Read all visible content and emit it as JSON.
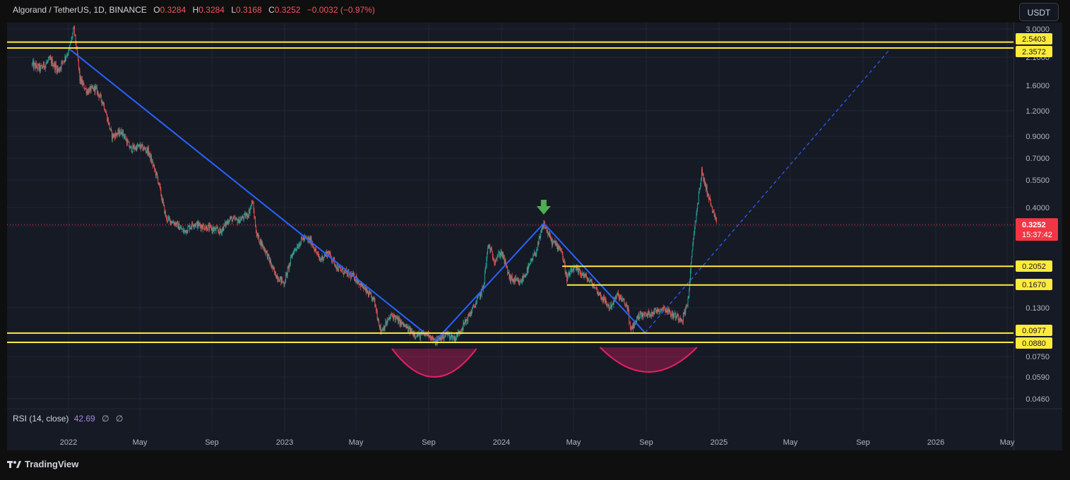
{
  "header": {
    "symbol": "Algorand / TetherUS, 1D, BINANCE",
    "open_label": "O",
    "open": "0.3284",
    "high_label": "H",
    "high": "0.3284",
    "low_label": "L",
    "low": "0.3168",
    "close_label": "C",
    "close": "0.3252",
    "change": "−0.0032 (−0.97%)",
    "currency": "USDT"
  },
  "price_tag": {
    "value": "0.3252",
    "countdown": "15:37:42"
  },
  "rsi": {
    "name": "RSI (14, close)",
    "value": "42.69",
    "placeholder1": "∅",
    "placeholder2": "∅"
  },
  "brand": "TradingView",
  "colors": {
    "background": "#161a25",
    "up": "#26a69a",
    "down": "#ef5350",
    "trendline": "#2962ff",
    "level": "#ffeb3b",
    "arrow": "#4caf50",
    "arc": "#e91e63",
    "price_tag": "#f23645"
  },
  "icons": {
    "arrow": "arrow-down-icon",
    "brand": "tradingview-logo-icon"
  },
  "chart_data": {
    "type": "candlestick",
    "y_scale": "log",
    "ylim": [
      0.04,
      3.0
    ],
    "y_ticks": [
      "3.0000",
      "2.1000",
      "1.6000",
      "1.2000",
      "0.9000",
      "0.7000",
      "0.5500",
      "0.4000",
      "0.3200",
      "0.1300",
      "0.0750",
      "0.0590",
      "0.0460"
    ],
    "x_ticks": [
      "2022",
      "May",
      "Sep",
      "2023",
      "May",
      "Sep",
      "2024",
      "May",
      "Sep",
      "2025",
      "May",
      "Sep",
      "2026",
      "May"
    ],
    "horizontal_levels": [
      "2.5403",
      "2.3572",
      "0.2052",
      "0.1670",
      "0.0977",
      "0.0880"
    ],
    "series": [
      {
        "values": [
          [
            "2021-11-01",
            1.95
          ],
          [
            "2021-11-15",
            1.88
          ],
          [
            "2021-12-01",
            2.05
          ],
          [
            "2021-12-15",
            1.85
          ],
          [
            "2022-01-01",
            2.25
          ],
          [
            "2022-01-10",
            3.0
          ],
          [
            "2022-01-20",
            1.7
          ],
          [
            "2022-02-01",
            1.5
          ],
          [
            "2022-02-15",
            1.55
          ],
          [
            "2022-03-01",
            1.3
          ],
          [
            "2022-03-15",
            0.9
          ],
          [
            "2022-04-01",
            0.95
          ],
          [
            "2022-04-15",
            0.78
          ],
          [
            "2022-05-01",
            0.8
          ],
          [
            "2022-05-15",
            0.76
          ],
          [
            "2022-06-01",
            0.55
          ],
          [
            "2022-06-15",
            0.35
          ],
          [
            "2022-07-01",
            0.33
          ],
          [
            "2022-07-15",
            0.3
          ],
          [
            "2022-08-01",
            0.33
          ],
          [
            "2022-08-15",
            0.32
          ],
          [
            "2022-09-01",
            0.31
          ],
          [
            "2022-09-15",
            0.3
          ],
          [
            "2022-10-01",
            0.35
          ],
          [
            "2022-10-15",
            0.34
          ],
          [
            "2022-11-01",
            0.37
          ],
          [
            "2022-11-08",
            0.43
          ],
          [
            "2022-11-15",
            0.29
          ],
          [
            "2022-12-01",
            0.24
          ],
          [
            "2022-12-15",
            0.19
          ],
          [
            "2022-12-31",
            0.17
          ],
          [
            "2023-01-15",
            0.24
          ],
          [
            "2023-02-01",
            0.28
          ],
          [
            "2023-02-15",
            0.27
          ],
          [
            "2023-03-01",
            0.22
          ],
          [
            "2023-03-15",
            0.24
          ],
          [
            "2023-04-01",
            0.2
          ],
          [
            "2023-04-15",
            0.19
          ],
          [
            "2023-05-01",
            0.18
          ],
          [
            "2023-05-15",
            0.16
          ],
          [
            "2023-06-01",
            0.14
          ],
          [
            "2023-06-12",
            0.1
          ],
          [
            "2023-07-01",
            0.12
          ],
          [
            "2023-07-15",
            0.11
          ],
          [
            "2023-08-01",
            0.1
          ],
          [
            "2023-08-15",
            0.095
          ],
          [
            "2023-09-01",
            0.097
          ],
          [
            "2023-09-11",
            0.088
          ],
          [
            "2023-10-01",
            0.097
          ],
          [
            "2023-10-15",
            0.092
          ],
          [
            "2023-11-01",
            0.11
          ],
          [
            "2023-11-15",
            0.13
          ],
          [
            "2023-12-01",
            0.16
          ],
          [
            "2023-12-10",
            0.26
          ],
          [
            "2023-12-20",
            0.22
          ],
          [
            "2024-01-01",
            0.24
          ],
          [
            "2024-01-15",
            0.18
          ],
          [
            "2024-02-01",
            0.17
          ],
          [
            "2024-02-15",
            0.2
          ],
          [
            "2024-03-01",
            0.25
          ],
          [
            "2024-03-12",
            0.33
          ],
          [
            "2024-03-25",
            0.27
          ],
          [
            "2024-04-10",
            0.25
          ],
          [
            "2024-04-20",
            0.18
          ],
          [
            "2024-05-01",
            0.2
          ],
          [
            "2024-05-15",
            0.19
          ],
          [
            "2024-06-01",
            0.17
          ],
          [
            "2024-06-15",
            0.15
          ],
          [
            "2024-07-01",
            0.13
          ],
          [
            "2024-07-15",
            0.15
          ],
          [
            "2024-08-01",
            0.13
          ],
          [
            "2024-08-05",
            0.1
          ],
          [
            "2024-08-20",
            0.12
          ],
          [
            "2024-09-01",
            0.12
          ],
          [
            "2024-09-15",
            0.125
          ],
          [
            "2024-10-01",
            0.13
          ],
          [
            "2024-10-15",
            0.12
          ],
          [
            "2024-11-01",
            0.115
          ],
          [
            "2024-11-10",
            0.14
          ],
          [
            "2024-11-20",
            0.3
          ],
          [
            "2024-12-03",
            0.6
          ],
          [
            "2024-12-15",
            0.45
          ],
          [
            "2024-12-28",
            0.3252
          ]
        ]
      }
    ]
  }
}
